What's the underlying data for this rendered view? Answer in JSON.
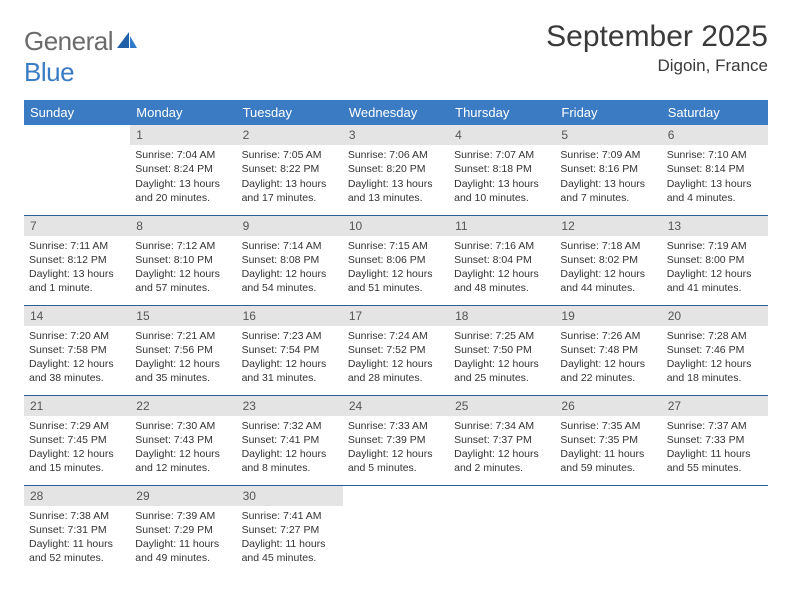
{
  "brand": {
    "part1": "General",
    "part2": "Blue"
  },
  "title": "September 2025",
  "location": "Digoin, France",
  "colors": {
    "header_bg": "#3b7bc4",
    "header_text": "#ffffff",
    "daynum_bg": "#e4e4e4",
    "rule": "#2f5e94",
    "text": "#333333",
    "brand_gray": "#6b6b6b",
    "brand_blue": "#3b7bc4"
  },
  "day_names": [
    "Sunday",
    "Monday",
    "Tuesday",
    "Wednesday",
    "Thursday",
    "Friday",
    "Saturday"
  ],
  "weeks": [
    [
      {
        "n": "",
        "sr": "",
        "ss": "",
        "dl": ""
      },
      {
        "n": "1",
        "sr": "Sunrise: 7:04 AM",
        "ss": "Sunset: 8:24 PM",
        "dl": "Daylight: 13 hours and 20 minutes."
      },
      {
        "n": "2",
        "sr": "Sunrise: 7:05 AM",
        "ss": "Sunset: 8:22 PM",
        "dl": "Daylight: 13 hours and 17 minutes."
      },
      {
        "n": "3",
        "sr": "Sunrise: 7:06 AM",
        "ss": "Sunset: 8:20 PM",
        "dl": "Daylight: 13 hours and 13 minutes."
      },
      {
        "n": "4",
        "sr": "Sunrise: 7:07 AM",
        "ss": "Sunset: 8:18 PM",
        "dl": "Daylight: 13 hours and 10 minutes."
      },
      {
        "n": "5",
        "sr": "Sunrise: 7:09 AM",
        "ss": "Sunset: 8:16 PM",
        "dl": "Daylight: 13 hours and 7 minutes."
      },
      {
        "n": "6",
        "sr": "Sunrise: 7:10 AM",
        "ss": "Sunset: 8:14 PM",
        "dl": "Daylight: 13 hours and 4 minutes."
      }
    ],
    [
      {
        "n": "7",
        "sr": "Sunrise: 7:11 AM",
        "ss": "Sunset: 8:12 PM",
        "dl": "Daylight: 13 hours and 1 minute."
      },
      {
        "n": "8",
        "sr": "Sunrise: 7:12 AM",
        "ss": "Sunset: 8:10 PM",
        "dl": "Daylight: 12 hours and 57 minutes."
      },
      {
        "n": "9",
        "sr": "Sunrise: 7:14 AM",
        "ss": "Sunset: 8:08 PM",
        "dl": "Daylight: 12 hours and 54 minutes."
      },
      {
        "n": "10",
        "sr": "Sunrise: 7:15 AM",
        "ss": "Sunset: 8:06 PM",
        "dl": "Daylight: 12 hours and 51 minutes."
      },
      {
        "n": "11",
        "sr": "Sunrise: 7:16 AM",
        "ss": "Sunset: 8:04 PM",
        "dl": "Daylight: 12 hours and 48 minutes."
      },
      {
        "n": "12",
        "sr": "Sunrise: 7:18 AM",
        "ss": "Sunset: 8:02 PM",
        "dl": "Daylight: 12 hours and 44 minutes."
      },
      {
        "n": "13",
        "sr": "Sunrise: 7:19 AM",
        "ss": "Sunset: 8:00 PM",
        "dl": "Daylight: 12 hours and 41 minutes."
      }
    ],
    [
      {
        "n": "14",
        "sr": "Sunrise: 7:20 AM",
        "ss": "Sunset: 7:58 PM",
        "dl": "Daylight: 12 hours and 38 minutes."
      },
      {
        "n": "15",
        "sr": "Sunrise: 7:21 AM",
        "ss": "Sunset: 7:56 PM",
        "dl": "Daylight: 12 hours and 35 minutes."
      },
      {
        "n": "16",
        "sr": "Sunrise: 7:23 AM",
        "ss": "Sunset: 7:54 PM",
        "dl": "Daylight: 12 hours and 31 minutes."
      },
      {
        "n": "17",
        "sr": "Sunrise: 7:24 AM",
        "ss": "Sunset: 7:52 PM",
        "dl": "Daylight: 12 hours and 28 minutes."
      },
      {
        "n": "18",
        "sr": "Sunrise: 7:25 AM",
        "ss": "Sunset: 7:50 PM",
        "dl": "Daylight: 12 hours and 25 minutes."
      },
      {
        "n": "19",
        "sr": "Sunrise: 7:26 AM",
        "ss": "Sunset: 7:48 PM",
        "dl": "Daylight: 12 hours and 22 minutes."
      },
      {
        "n": "20",
        "sr": "Sunrise: 7:28 AM",
        "ss": "Sunset: 7:46 PM",
        "dl": "Daylight: 12 hours and 18 minutes."
      }
    ],
    [
      {
        "n": "21",
        "sr": "Sunrise: 7:29 AM",
        "ss": "Sunset: 7:45 PM",
        "dl": "Daylight: 12 hours and 15 minutes."
      },
      {
        "n": "22",
        "sr": "Sunrise: 7:30 AM",
        "ss": "Sunset: 7:43 PM",
        "dl": "Daylight: 12 hours and 12 minutes."
      },
      {
        "n": "23",
        "sr": "Sunrise: 7:32 AM",
        "ss": "Sunset: 7:41 PM",
        "dl": "Daylight: 12 hours and 8 minutes."
      },
      {
        "n": "24",
        "sr": "Sunrise: 7:33 AM",
        "ss": "Sunset: 7:39 PM",
        "dl": "Daylight: 12 hours and 5 minutes."
      },
      {
        "n": "25",
        "sr": "Sunrise: 7:34 AM",
        "ss": "Sunset: 7:37 PM",
        "dl": "Daylight: 12 hours and 2 minutes."
      },
      {
        "n": "26",
        "sr": "Sunrise: 7:35 AM",
        "ss": "Sunset: 7:35 PM",
        "dl": "Daylight: 11 hours and 59 minutes."
      },
      {
        "n": "27",
        "sr": "Sunrise: 7:37 AM",
        "ss": "Sunset: 7:33 PM",
        "dl": "Daylight: 11 hours and 55 minutes."
      }
    ],
    [
      {
        "n": "28",
        "sr": "Sunrise: 7:38 AM",
        "ss": "Sunset: 7:31 PM",
        "dl": "Daylight: 11 hours and 52 minutes."
      },
      {
        "n": "29",
        "sr": "Sunrise: 7:39 AM",
        "ss": "Sunset: 7:29 PM",
        "dl": "Daylight: 11 hours and 49 minutes."
      },
      {
        "n": "30",
        "sr": "Sunrise: 7:41 AM",
        "ss": "Sunset: 7:27 PM",
        "dl": "Daylight: 11 hours and 45 minutes."
      },
      {
        "n": "",
        "sr": "",
        "ss": "",
        "dl": ""
      },
      {
        "n": "",
        "sr": "",
        "ss": "",
        "dl": ""
      },
      {
        "n": "",
        "sr": "",
        "ss": "",
        "dl": ""
      },
      {
        "n": "",
        "sr": "",
        "ss": "",
        "dl": ""
      }
    ]
  ]
}
